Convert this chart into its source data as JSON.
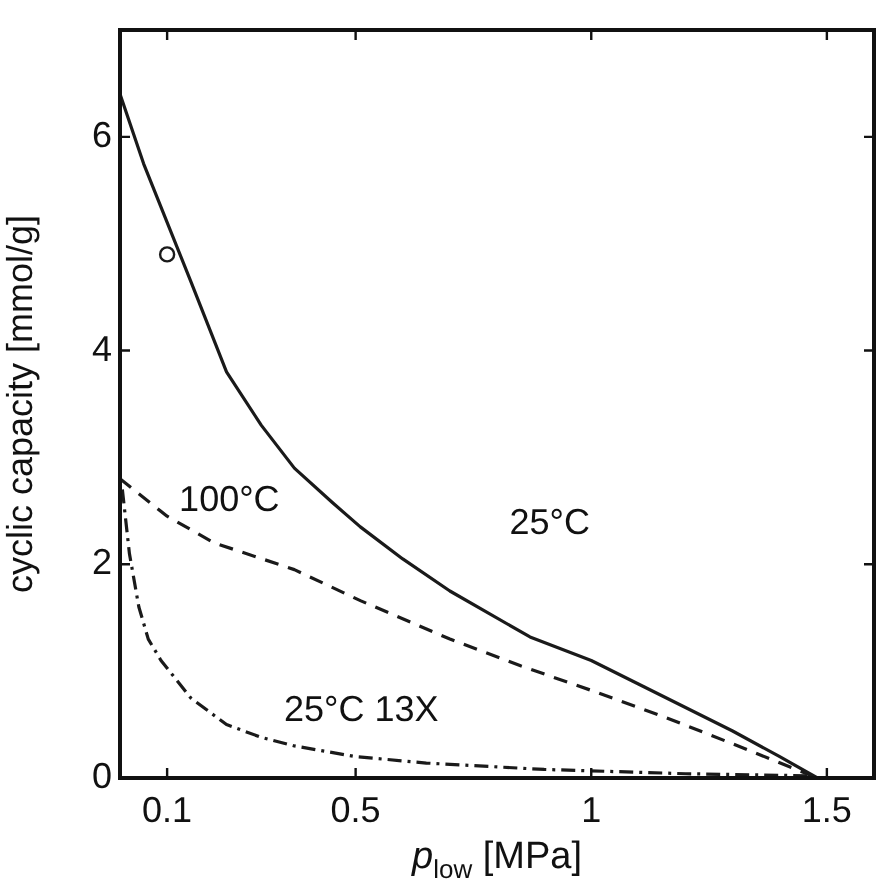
{
  "chart_data": {
    "type": "line",
    "ylabel": "cyclic capacity [mmol/g]",
    "xlabel": "p$_{low}$ [MPa]",
    "xlim": [
      0,
      1.6
    ],
    "xticks": [
      0.1,
      0.5,
      1,
      1.5
    ],
    "ylim": [
      0,
      7
    ],
    "yticks": [
      0,
      2,
      4,
      6
    ],
    "grid": false,
    "legend": false,
    "series": [
      {
        "name": "25°C",
        "color": "#1a1a1a",
        "line_style": "solid",
        "x": [
          0,
          0.05,
          0.1,
          0.15,
          0.226,
          0.3,
          0.37,
          0.45,
          0.51,
          0.6,
          0.7,
          0.87,
          1.0,
          1.1,
          1.2,
          1.3,
          1.4,
          1.48
        ],
        "values": [
          6.4,
          5.75,
          5.2,
          4.65,
          3.8,
          3.3,
          2.9,
          2.58,
          2.35,
          2.05,
          1.75,
          1.32,
          1.1,
          0.88,
          0.66,
          0.44,
          0.2,
          0
        ]
      },
      {
        "name": "100°C",
        "color": "#1a1a1a",
        "line_style": "dashed",
        "x": [
          0,
          0.1,
          0.2,
          0.37,
          0.51,
          0.7,
          0.85,
          1.0,
          1.15,
          1.3,
          1.48
        ],
        "values": [
          2.8,
          2.45,
          2.2,
          1.95,
          1.66,
          1.3,
          1.05,
          0.82,
          0.58,
          0.32,
          0
        ]
      },
      {
        "name": "25°C 13X",
        "color": "#1a1a1a",
        "line_style": "dashdot",
        "x": [
          0.005,
          0.02,
          0.04,
          0.06,
          0.087,
          0.15,
          0.226,
          0.3,
          0.37,
          0.5,
          0.65,
          0.9,
          1.2,
          1.47
        ],
        "values": [
          2.7,
          2.1,
          1.6,
          1.3,
          1.1,
          0.75,
          0.5,
          0.38,
          0.3,
          0.2,
          0.14,
          0.08,
          0.04,
          0.02
        ]
      },
      {
        "type": "scatter",
        "color": "#1a1a1a",
        "marker": "circle",
        "x": [
          0.1
        ],
        "values": [
          4.9
        ]
      }
    ]
  }
}
